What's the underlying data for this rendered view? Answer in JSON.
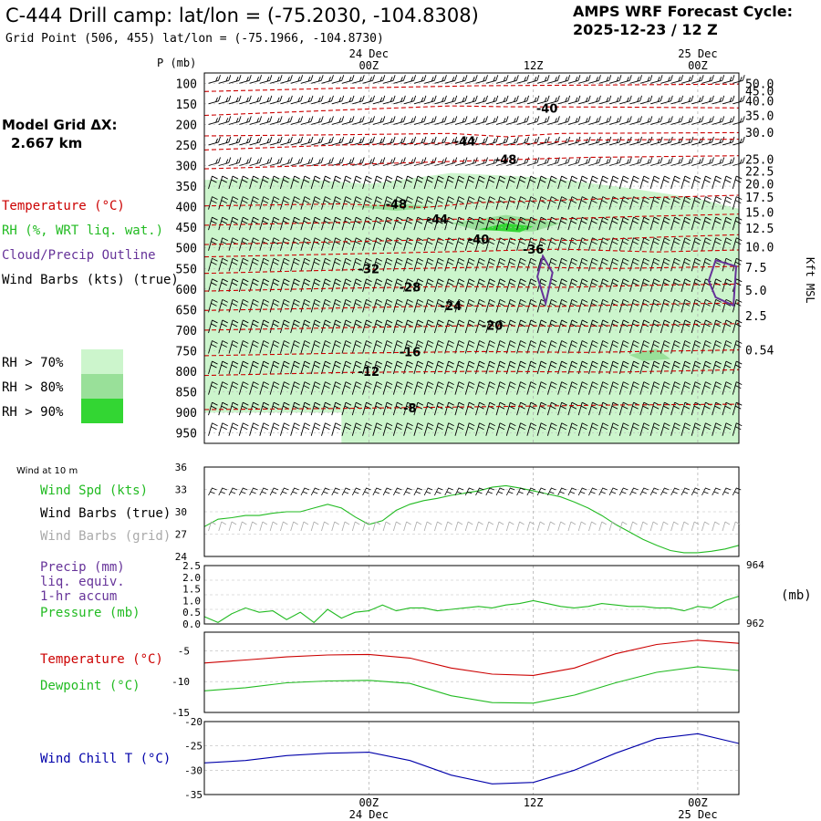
{
  "header": {
    "title": "C-444 Drill camp:  lat/lon = (-75.2030, -104.8308)",
    "subtitle": "Grid Point (506, 455) lat/lon = (-75.1966, -104.8730)",
    "cycle_label": "AMPS WRF Forecast Cycle:",
    "cycle_value": "2025-12-23 / 12  Z"
  },
  "side_labels": {
    "grid_label": "Model Grid ΔX:",
    "grid_value": "2.667 km",
    "temperature": "Temperature (°C)",
    "rh": "RH (%, WRT liq. wat.)",
    "cloud": "Cloud/Precip Outline",
    "wind": "Wind Barbs (kts) (true)",
    "rh_legend": [
      {
        "label": "RH > 70%",
        "color": "#ccf5cc"
      },
      {
        "label": "RH > 80%",
        "color": "#99e099"
      },
      {
        "label": "RH > 90%",
        "color": "#33d633"
      }
    ]
  },
  "colors": {
    "temperature": "#cc0000",
    "rh": "#22bb22",
    "cloud": "#663399",
    "wind": "#000000",
    "wind_grid": "#aaaaaa",
    "chill": "#0000aa",
    "grid": "#999999"
  },
  "top_axis": {
    "p_label": "P (mb)",
    "time_dates": [
      "24 Dec",
      "25 Dec"
    ],
    "time_hours": [
      "00Z",
      "12Z",
      "00Z"
    ],
    "right_label": "Kft MSL"
  },
  "bottom_axis": {
    "time_hours": [
      "00Z",
      "12Z",
      "00Z"
    ],
    "time_dates": [
      "24 Dec",
      "25 Dec"
    ]
  },
  "chart_data": [
    {
      "type": "heatmap",
      "name": "Time-height cross section",
      "x_hours": [
        0,
        39
      ],
      "x_ticks": [
        {
          "hour": 12,
          "label": "00Z"
        },
        {
          "hour": 24,
          "label": "12Z"
        },
        {
          "hour": 36,
          "label": "00Z"
        }
      ],
      "pressure_levels": [
        100,
        150,
        200,
        250,
        300,
        350,
        400,
        450,
        500,
        550,
        600,
        650,
        700,
        750,
        800,
        850,
        900,
        950
      ],
      "height_ticks_kft": [
        "50.0",
        "45.0",
        "40.0",
        "35.0",
        "30.0",
        "25.0",
        "22.5",
        "20.0",
        "17.5",
        "15.0",
        "12.5",
        "10.0",
        "7.5",
        "5.0",
        "2.5",
        "0.54"
      ],
      "height_tick_pressure": [
        100,
        118,
        143,
        178,
        219,
        284,
        313,
        344,
        377,
        413,
        452,
        497,
        547,
        603,
        665,
        748
      ],
      "temperature_labels": [
        {
          "value": "-40",
          "hour": 25,
          "p": 160
        },
        {
          "value": "-44",
          "hour": 19,
          "p": 240
        },
        {
          "value": "-48",
          "hour": 22,
          "p": 285
        },
        {
          "value": "-48",
          "hour": 14,
          "p": 393
        },
        {
          "value": "-44",
          "hour": 17,
          "p": 430
        },
        {
          "value": "-40",
          "hour": 20,
          "p": 478
        },
        {
          "value": "-36",
          "hour": 24,
          "p": 503
        },
        {
          "value": "-32",
          "hour": 12,
          "p": 550
        },
        {
          "value": "-28",
          "hour": 15,
          "p": 595
        },
        {
          "value": "-24",
          "hour": 18,
          "p": 640
        },
        {
          "value": "-20",
          "hour": 21,
          "p": 688
        },
        {
          "value": "-16",
          "hour": 15,
          "p": 752
        },
        {
          "value": "-12",
          "hour": 12,
          "p": 800
        },
        {
          "value": "-8",
          "hour": 15,
          "p": 888
        }
      ],
      "temperature_contours": [
        {
          "pts": [
            [
              0,
              120
            ],
            [
              10,
              112
            ],
            [
              20,
              106
            ],
            [
              30,
              104
            ],
            [
              39,
              102
            ]
          ]
        },
        {
          "pts": [
            [
              0,
              178
            ],
            [
              10,
              165
            ],
            [
              18,
              155
            ],
            [
              22,
              157
            ],
            [
              30,
              158
            ],
            [
              39,
              160
            ]
          ]
        },
        {
          "pts": [
            [
              0,
              228
            ],
            [
              10,
              225
            ],
            [
              18,
              222
            ],
            [
              22,
              230
            ],
            [
              26,
              222
            ],
            [
              39,
              220
            ]
          ]
        },
        {
          "pts": [
            [
              0,
              262
            ],
            [
              10,
              250
            ],
            [
              18,
              245
            ],
            [
              22,
              250
            ],
            [
              28,
              238
            ],
            [
              39,
              236
            ]
          ]
        },
        {
          "pts": [
            [
              0,
              308
            ],
            [
              10,
              298
            ],
            [
              18,
              290
            ],
            [
              22,
              286
            ],
            [
              28,
              280
            ],
            [
              39,
              276
            ]
          ]
        },
        {
          "pts": [
            [
              0,
              398
            ],
            [
              10,
              393
            ],
            [
              16,
              402
            ],
            [
              20,
              390
            ],
            [
              30,
              380
            ],
            [
              39,
              372
            ]
          ]
        },
        {
          "pts": [
            [
              0,
              445
            ],
            [
              10,
              438
            ],
            [
              17,
              430
            ],
            [
              24,
              432
            ],
            [
              30,
              425
            ],
            [
              39,
              418
            ]
          ]
        },
        {
          "pts": [
            [
              0,
              492
            ],
            [
              10,
              485
            ],
            [
              20,
              478
            ],
            [
              27,
              482
            ],
            [
              33,
              474
            ],
            [
              39,
              468
            ]
          ]
        },
        {
          "pts": [
            [
              0,
              522
            ],
            [
              10,
              515
            ],
            [
              20,
              508
            ],
            [
              26,
              503
            ],
            [
              33,
              510
            ],
            [
              39,
              505
            ]
          ]
        },
        {
          "pts": [
            [
              0,
              562
            ],
            [
              12,
              552
            ],
            [
              22,
              546
            ],
            [
              30,
              550
            ],
            [
              39,
              545
            ]
          ]
        },
        {
          "pts": [
            [
              0,
              605
            ],
            [
              10,
              598
            ],
            [
              18,
              594
            ],
            [
              26,
              596
            ],
            [
              34,
              590
            ],
            [
              39,
              588
            ]
          ]
        },
        {
          "pts": [
            [
              0,
              652
            ],
            [
              10,
              646
            ],
            [
              18,
              641
            ],
            [
              26,
              642
            ],
            [
              34,
              636
            ],
            [
              39,
              634
            ]
          ]
        },
        {
          "pts": [
            [
              0,
              700
            ],
            [
              10,
              694
            ],
            [
              20,
              689
            ],
            [
              28,
              690
            ],
            [
              39,
              684
            ]
          ]
        },
        {
          "pts": [
            [
              0,
              762
            ],
            [
              10,
              756
            ],
            [
              20,
              752
            ],
            [
              28,
              754
            ],
            [
              39,
              748
            ]
          ]
        },
        {
          "pts": [
            [
              0,
              810
            ],
            [
              10,
              803
            ],
            [
              20,
              800
            ],
            [
              30,
              802
            ],
            [
              39,
              796
            ]
          ]
        },
        {
          "pts": [
            [
              0,
              893
            ],
            [
              10,
              890
            ],
            [
              20,
              886
            ],
            [
              30,
              882
            ],
            [
              39,
              880
            ]
          ]
        }
      ],
      "rh_regions": [
        {
          "level": 70,
          "pts": [
            [
              0,
              335
            ],
            [
              6,
              330
            ],
            [
              12,
              345
            ],
            [
              18,
              318
            ],
            [
              25,
              330
            ],
            [
              31,
              355
            ],
            [
              36,
              380
            ],
            [
              39,
              405
            ],
            [
              39,
              975
            ],
            [
              10,
              975
            ],
            [
              10,
              900
            ],
            [
              0,
              900
            ]
          ]
        },
        {
          "level": 80,
          "pts": [
            [
              11,
              400
            ],
            [
              14,
              392
            ],
            [
              17,
              400
            ],
            [
              14,
              410
            ]
          ]
        },
        {
          "level": 80,
          "pts": [
            [
              18,
              440
            ],
            [
              22,
              420
            ],
            [
              26,
              440
            ],
            [
              24,
              460
            ],
            [
              20,
              458
            ]
          ]
        },
        {
          "level": 80,
          "pts": [
            [
              31,
              760
            ],
            [
              33,
              745
            ],
            [
              34,
              770
            ],
            [
              32,
              775
            ]
          ]
        },
        {
          "level": 90,
          "pts": [
            [
              20,
              455
            ],
            [
              22,
              440
            ],
            [
              24,
              448
            ],
            [
              23,
              462
            ]
          ]
        }
      ],
      "cloud_outlines": [
        {
          "pts": [
            [
              24.7,
              520
            ],
            [
              25.4,
              560
            ],
            [
              24.9,
              635
            ],
            [
              24.3,
              570
            ]
          ]
        },
        {
          "pts": [
            [
              37.3,
              530
            ],
            [
              38.8,
              545
            ],
            [
              38.6,
              640
            ],
            [
              37.3,
              620
            ],
            [
              36.8,
              580
            ]
          ]
        }
      ]
    },
    {
      "type": "line",
      "name": "Wind at 10 m",
      "panel_label": "Wind at 10 m",
      "legend": [
        "Wind Spd (kts)",
        "Wind Barbs (true)",
        "Wind Barbs (grid)"
      ],
      "ylim": [
        24,
        36
      ],
      "y_ticks": [
        "24",
        "27",
        "30",
        "33",
        "36"
      ],
      "x": [
        0,
        1,
        2,
        3,
        4,
        5,
        6,
        7,
        8,
        9,
        10,
        11,
        12,
        13,
        14,
        15,
        16,
        17,
        18,
        19,
        20,
        21,
        22,
        23,
        24,
        25,
        26,
        27,
        28,
        29,
        30,
        31,
        32,
        33,
        34,
        35,
        36,
        37,
        38,
        39
      ],
      "values": [
        28,
        29,
        29.2,
        29.5,
        29.5,
        29.8,
        30,
        30,
        30.5,
        31,
        30.5,
        29.3,
        28.3,
        28.8,
        30.2,
        31,
        31.5,
        31.8,
        32.2,
        32.5,
        32.8,
        33.3,
        33.5,
        33.2,
        32.8,
        32.4,
        32,
        31.3,
        30.5,
        29.5,
        28.3,
        27.3,
        26.3,
        25.5,
        24.8,
        24.5,
        24.5,
        24.7,
        25,
        25.5
      ]
    },
    {
      "type": "line",
      "name": "Precip and Pressure",
      "legend": [
        "Precip (mm)",
        "liq. equiv.",
        "1-hr accum",
        "Pressure (mb)"
      ],
      "precip_ticks": [
        "0.0",
        "0.5",
        "1.0",
        "1.5",
        "2.0",
        "2.5"
      ],
      "pressure_ticks": [
        "962",
        "964"
      ],
      "pressure_unit": "(mb)",
      "pressure_ylim": [
        962,
        964
      ],
      "x": [
        0,
        1,
        2,
        3,
        4,
        5,
        6,
        7,
        8,
        9,
        10,
        11,
        12,
        13,
        14,
        15,
        16,
        17,
        18,
        19,
        20,
        21,
        22,
        23,
        24,
        25,
        26,
        27,
        28,
        29,
        30,
        31,
        32,
        33,
        34,
        35,
        36,
        37,
        38,
        39
      ],
      "pressure": [
        962.25,
        962.05,
        962.35,
        962.55,
        962.4,
        962.45,
        962.15,
        962.4,
        962.05,
        962.5,
        962.2,
        962.4,
        962.45,
        962.65,
        962.45,
        962.55,
        962.55,
        962.45,
        962.5,
        962.55,
        962.6,
        962.55,
        962.65,
        962.7,
        962.8,
        962.7,
        962.6,
        962.55,
        962.6,
        962.7,
        962.65,
        962.6,
        962.6,
        962.55,
        962.55,
        962.45,
        962.6,
        962.55,
        962.8,
        962.95
      ]
    },
    {
      "type": "line",
      "name": "Temperature and Dewpoint",
      "legend": [
        "Temperature (°C)",
        "Dewpoint (°C)"
      ],
      "ylim": [
        -15,
        -2
      ],
      "y_ticks": [
        "-5",
        "-10",
        "-15"
      ],
      "x": [
        0,
        3,
        6,
        9,
        12,
        15,
        18,
        21,
        24,
        27,
        30,
        33,
        36,
        39
      ],
      "series": [
        {
          "name": "Temperature",
          "values": [
            -7,
            -6.5,
            -6,
            -5.7,
            -5.6,
            -6.2,
            -7.8,
            -8.8,
            -9,
            -7.8,
            -5.5,
            -4,
            -3.3,
            -3.8
          ]
        },
        {
          "name": "Dewpoint",
          "values": [
            -11.5,
            -11,
            -10.2,
            -9.9,
            -9.8,
            -10.3,
            -12.3,
            -13.4,
            -13.5,
            -12.2,
            -10.2,
            -8.5,
            -7.6,
            -8.2
          ]
        }
      ]
    },
    {
      "type": "line",
      "name": "Wind Chill",
      "legend": [
        "Wind Chill T (°C)"
      ],
      "ylim": [
        -35,
        -20
      ],
      "y_ticks": [
        "-20",
        "-25",
        "-30",
        "-35"
      ],
      "x": [
        0,
        3,
        6,
        9,
        12,
        15,
        18,
        21,
        24,
        27,
        30,
        33,
        36,
        39
      ],
      "values": [
        -28.5,
        -28,
        -27,
        -26.5,
        -26.3,
        -28,
        -31,
        -32.8,
        -32.5,
        -30,
        -26.5,
        -23.5,
        -22.5,
        -24.5
      ]
    }
  ]
}
